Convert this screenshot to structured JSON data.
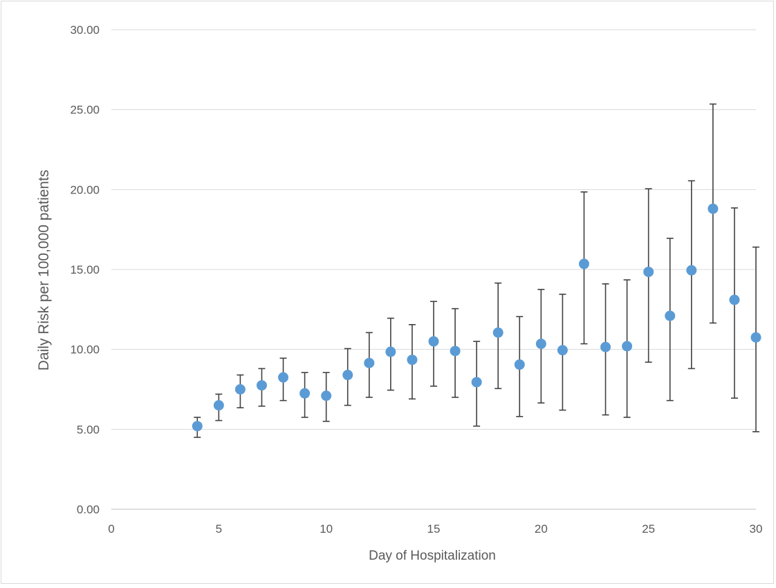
{
  "chart_data": {
    "type": "scatter",
    "title": "",
    "xlabel": "Day of Hospitalization",
    "ylabel": "Daily Risk per 100,000 patients",
    "xlim": [
      0,
      30
    ],
    "ylim": [
      0,
      30
    ],
    "xticks": [
      0,
      5,
      10,
      15,
      20,
      25,
      30
    ],
    "yticks": [
      "0.00",
      "5.00",
      "10.00",
      "15.00",
      "20.00",
      "25.00",
      "30.00"
    ],
    "grid": "horizontal",
    "legend": "none",
    "marker_color": "#5b9bd5",
    "error_bar_color": "#404040",
    "series": [
      {
        "points": [
          {
            "x": 4,
            "y": 5.2,
            "lo": 4.5,
            "hi": 5.75
          },
          {
            "x": 5,
            "y": 6.5,
            "lo": 5.55,
            "hi": 7.2
          },
          {
            "x": 6,
            "y": 7.5,
            "lo": 6.35,
            "hi": 8.4
          },
          {
            "x": 7,
            "y": 7.75,
            "lo": 6.45,
            "hi": 8.8
          },
          {
            "x": 8,
            "y": 8.25,
            "lo": 6.8,
            "hi": 9.45
          },
          {
            "x": 9,
            "y": 7.25,
            "lo": 5.75,
            "hi": 8.55
          },
          {
            "x": 10,
            "y": 7.1,
            "lo": 5.5,
            "hi": 8.55
          },
          {
            "x": 11,
            "y": 8.4,
            "lo": 6.5,
            "hi": 10.05
          },
          {
            "x": 12,
            "y": 9.15,
            "lo": 7.0,
            "hi": 11.05
          },
          {
            "x": 13,
            "y": 9.85,
            "lo": 7.45,
            "hi": 11.95
          },
          {
            "x": 14,
            "y": 9.35,
            "lo": 6.9,
            "hi": 11.55
          },
          {
            "x": 15,
            "y": 10.5,
            "lo": 7.7,
            "hi": 13.0
          },
          {
            "x": 16,
            "y": 9.9,
            "lo": 7.0,
            "hi": 12.55
          },
          {
            "x": 17,
            "y": 7.95,
            "lo": 5.2,
            "hi": 10.5
          },
          {
            "x": 18,
            "y": 11.05,
            "lo": 7.55,
            "hi": 14.15
          },
          {
            "x": 19,
            "y": 9.05,
            "lo": 5.8,
            "hi": 12.05
          },
          {
            "x": 20,
            "y": 10.35,
            "lo": 6.65,
            "hi": 13.75
          },
          {
            "x": 21,
            "y": 9.95,
            "lo": 6.2,
            "hi": 13.45
          },
          {
            "x": 22,
            "y": 15.35,
            "lo": 10.35,
            "hi": 19.85
          },
          {
            "x": 23,
            "y": 10.15,
            "lo": 5.9,
            "hi": 14.1
          },
          {
            "x": 24,
            "y": 10.2,
            "lo": 5.75,
            "hi": 14.35
          },
          {
            "x": 25,
            "y": 14.85,
            "lo": 9.2,
            "hi": 20.05
          },
          {
            "x": 26,
            "y": 12.1,
            "lo": 6.8,
            "hi": 16.95
          },
          {
            "x": 27,
            "y": 14.95,
            "lo": 8.8,
            "hi": 20.55
          },
          {
            "x": 28,
            "y": 18.8,
            "lo": 11.65,
            "hi": 25.35
          },
          {
            "x": 29,
            "y": 13.1,
            "lo": 6.95,
            "hi": 18.85
          },
          {
            "x": 30,
            "y": 10.75,
            "lo": 4.85,
            "hi": 16.4
          }
        ]
      }
    ]
  }
}
